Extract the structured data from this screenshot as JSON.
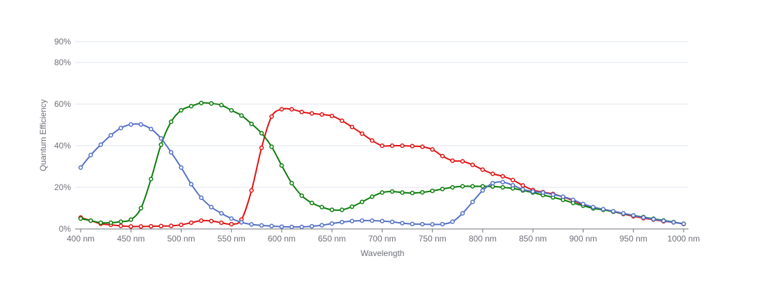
{
  "chart_data": {
    "type": "line",
    "xlabel": "Wavelength",
    "ylabel": "Quantum Efficiency",
    "xlim": [
      400,
      1000
    ],
    "ylim": [
      0,
      90
    ],
    "x_unit": "nm",
    "x_ticks": [
      400,
      450,
      500,
      550,
      600,
      650,
      700,
      750,
      800,
      850,
      900,
      950,
      1000
    ],
    "x_tick_labels": [
      "400 nm",
      "450 nm",
      "500 nm",
      "550 nm",
      "600 nm",
      "650 nm",
      "700 nm",
      "750 nm",
      "800 nm",
      "850 nm",
      "900 nm",
      "950 nm",
      "1000 nm"
    ],
    "y_ticks": [
      0,
      20,
      40,
      60,
      80,
      90
    ],
    "y_tick_labels": [
      "0%",
      "20%",
      "40%",
      "60%",
      "80%",
      "90%"
    ],
    "grid": true,
    "legend": "none",
    "x": [
      400,
      410,
      420,
      430,
      440,
      450,
      460,
      470,
      480,
      490,
      500,
      510,
      520,
      530,
      540,
      550,
      560,
      570,
      580,
      590,
      600,
      610,
      620,
      630,
      640,
      650,
      660,
      670,
      680,
      690,
      700,
      710,
      720,
      730,
      740,
      750,
      760,
      770,
      780,
      790,
      800,
      810,
      820,
      830,
      840,
      850,
      860,
      870,
      880,
      890,
      900,
      910,
      920,
      930,
      940,
      950,
      960,
      970,
      980,
      990,
      1000
    ],
    "series": [
      {
        "color": "#e01010",
        "values": [
          5.5,
          4,
          2.5,
          2,
          1.5,
          1.2,
          1.2,
          1.3,
          1.4,
          1.5,
          2,
          3,
          4,
          3.8,
          3,
          2.3,
          4.5,
          18.5,
          39,
          54,
          57.5,
          57.5,
          56.2,
          55.5,
          55,
          54.3,
          52,
          49,
          45.8,
          42.5,
          40,
          40,
          40,
          39.8,
          39.5,
          38.2,
          35,
          32.8,
          32.5,
          30.8,
          28.5,
          26.5,
          25.3,
          23.5,
          20.9,
          18.7,
          17.7,
          16.8,
          15.4,
          13.6,
          11.7,
          10.4,
          9.3,
          8.3,
          7.2,
          6.1,
          5.2,
          4.5,
          3.7,
          3.2,
          2.4
        ]
      },
      {
        "color": "#0a7d0a",
        "values": [
          5,
          4,
          3,
          3,
          3.5,
          4.5,
          10,
          24,
          40.5,
          51.5,
          57,
          59,
          60.5,
          60.3,
          59.5,
          57,
          54.5,
          50.5,
          46,
          39.5,
          30.5,
          22,
          16,
          12.5,
          10.5,
          9.2,
          9.2,
          10.7,
          13,
          15.5,
          17.5,
          18,
          17.5,
          17.3,
          17.6,
          18.3,
          19.2,
          20,
          20.5,
          20.5,
          20.5,
          20.4,
          20,
          19.5,
          18.5,
          17.5,
          16.3,
          15.2,
          14,
          12.5,
          11.2,
          9.9,
          9.2,
          8.3,
          7.4,
          6.5,
          5.7,
          4.9,
          4.1,
          3.3,
          2.5
        ]
      },
      {
        "color": "#5470c6",
        "values": [
          29.5,
          35.5,
          40.5,
          45,
          48.5,
          50.2,
          50.2,
          48,
          43.5,
          36.8,
          29.5,
          21.5,
          15,
          10.5,
          7.5,
          5,
          3.2,
          2.2,
          1.7,
          1.4,
          1.1,
          1,
          1,
          1.3,
          1.8,
          2.6,
          3.3,
          3.8,
          4,
          4,
          3.8,
          3.4,
          2.8,
          2.4,
          2.3,
          2.2,
          2.3,
          3.5,
          7.5,
          13,
          18.5,
          22,
          22.5,
          21,
          19,
          18,
          17.5,
          16.5,
          15.5,
          14,
          12,
          10.5,
          9.5,
          8.5,
          7.5,
          6.5,
          5.5,
          4.7,
          3.9,
          3.2,
          2.5
        ]
      }
    ]
  }
}
